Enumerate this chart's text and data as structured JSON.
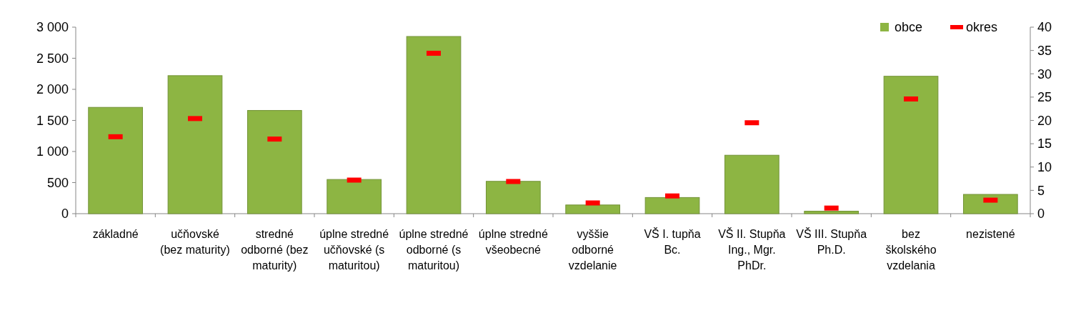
{
  "chart_data": {
    "type": "bar",
    "categories": [
      "základné",
      "učňovské (bez maturity)",
      "stredné odborné (bez maturity)",
      "úplne stredné učňovské (s maturitou)",
      "úplne stredné odborné (s maturitou)",
      "úplne stredné všeobecné",
      "vyššie odborné vzdelanie",
      "VŠ I. tupňa Bc.",
      "VŠ II. Stupňa Ing., Mgr. PhDr.",
      "VŠ III. Stupňa Ph.D.",
      "bez školského vzdelania",
      "nezistené"
    ],
    "series": [
      {
        "name": "obce",
        "color": "#8db543",
        "values": [
          1710,
          2220,
          1660,
          550,
          2850,
          520,
          140,
          260,
          940,
          40,
          2210,
          310
        ]
      },
      {
        "name": "okres",
        "type": "scatter",
        "axis": "y2",
        "color": "#ff0000",
        "values": [
          16.5,
          20.4,
          16,
          7.2,
          34.4,
          6.9,
          2.3,
          3.8,
          19.5,
          1.2,
          24.6,
          2.9
        ]
      }
    ],
    "ylim": [
      0,
      3000
    ],
    "yticks": [
      0,
      500,
      {
        "value": 1000,
        "label": "1 000"
      },
      {
        "value": 1500,
        "label": "1 500"
      },
      {
        "value": 2000,
        "label": "2 000"
      },
      {
        "value": 2500,
        "label": "2 500"
      },
      {
        "value": 3000,
        "label": "3 000"
      }
    ],
    "y2lim": [
      0,
      40
    ],
    "y2ticks": [
      0,
      5,
      10,
      15,
      20,
      25,
      30,
      35,
      40
    ],
    "legend": "top right"
  }
}
